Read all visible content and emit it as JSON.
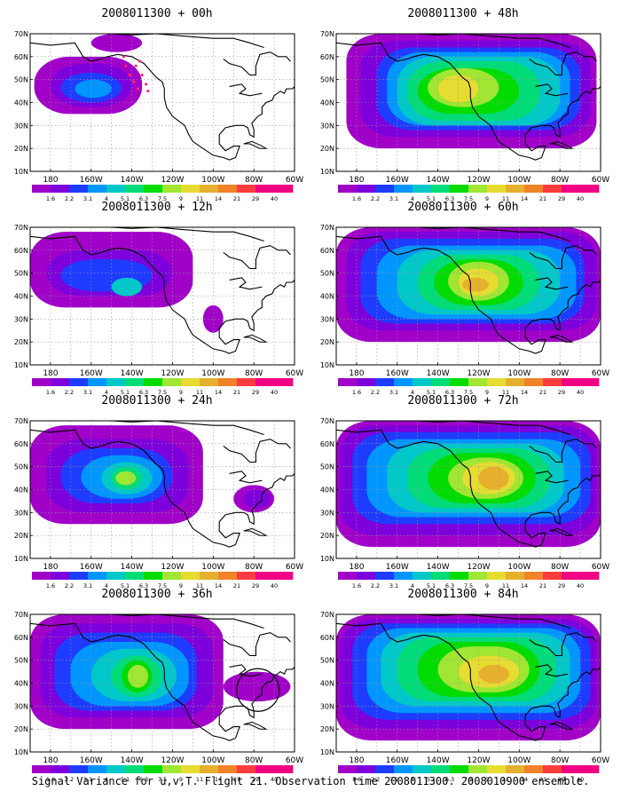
{
  "caption": "Signal Variance for u,v,T. Flight 21. Observation time 2008011300. 2008010900 ensemble.",
  "map": {
    "lat_labels": [
      "10N",
      "20N",
      "30N",
      "40N",
      "50N",
      "60N",
      "70N"
    ],
    "lon_labels": [
      "180",
      "160W",
      "140W",
      "120W",
      "100W",
      "80W",
      "60W"
    ],
    "colorbar_levels": [
      "1.6",
      "2.2",
      "3.1",
      "4",
      "5.1",
      "6.3",
      "7.5",
      "9",
      "11",
      "14",
      "21",
      "29",
      "40"
    ],
    "colorbar_colors": [
      "#a000c8",
      "#7d00dc",
      "#1e3cff",
      "#0096ff",
      "#00c8c8",
      "#00dc78",
      "#00dc00",
      "#a0e632",
      "#e6dc32",
      "#e6af2d",
      "#f08228",
      "#fa3c3c",
      "#f00082"
    ]
  },
  "panels": [
    {
      "title": "2008011300 + 00h"
    },
    {
      "title": "2008011300 + 48h"
    },
    {
      "title": "2008011300 + 12h"
    },
    {
      "title": "2008011300 + 60h"
    },
    {
      "title": "2008011300 + 24h"
    },
    {
      "title": "2008011300 + 72h"
    },
    {
      "title": "2008011300 + 36h"
    },
    {
      "title": "2008011300 + 84h"
    }
  ]
}
